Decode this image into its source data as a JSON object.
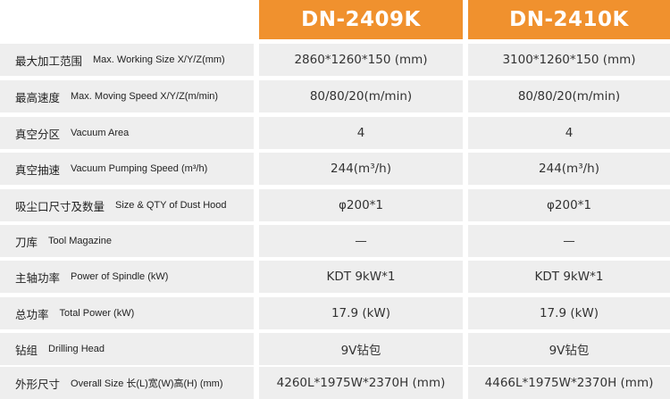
{
  "models": [
    "DN-2409K",
    "DN-2410K"
  ],
  "rows": [
    {
      "zh": "最大加工范围",
      "en": "Max. Working Size X/Y/Z(mm)",
      "a": "2860*1260*150 (mm)",
      "b": "3100*1260*150 (mm)"
    },
    {
      "zh": "最高速度",
      "en": "Max. Moving Speed X/Y/Z(m/min)",
      "a": "80/80/20(m/min)",
      "b": "80/80/20(m/min)"
    },
    {
      "zh": "真空分区",
      "en": "Vacuum Area",
      "a": "4",
      "b": "4"
    },
    {
      "zh": "真空抽速",
      "en": "Vacuum Pumping Speed (m³/h)",
      "a": "244(m³/h)",
      "b": "244(m³/h)"
    },
    {
      "zh": "吸尘口尺寸及数量",
      "en": "Size & QTY of Dust Hood",
      "a": "φ200*1",
      "b": "φ200*1"
    },
    {
      "zh": "刀库",
      "en": "Tool Magazine",
      "a": "—",
      "b": "—"
    },
    {
      "zh": "主轴功率",
      "en": "Power of Spindle (kW)",
      "a": "KDT 9kW*1",
      "b": "KDT 9kW*1"
    },
    {
      "zh": "总功率",
      "en": "Total Power (kW)",
      "a": "17.9 (kW)",
      "b": "17.9 (kW)"
    },
    {
      "zh": "钻组",
      "en": "Drilling Head",
      "a": "9V钻包",
      "b": "9V钻包"
    },
    {
      "zh": "外形尺寸",
      "en": "Overall Size 长(L)宽(W)高(H) (mm)",
      "a": "4260L*1975W*2370H  (mm)",
      "b": "4466L*1975W*2370H  (mm)"
    }
  ]
}
